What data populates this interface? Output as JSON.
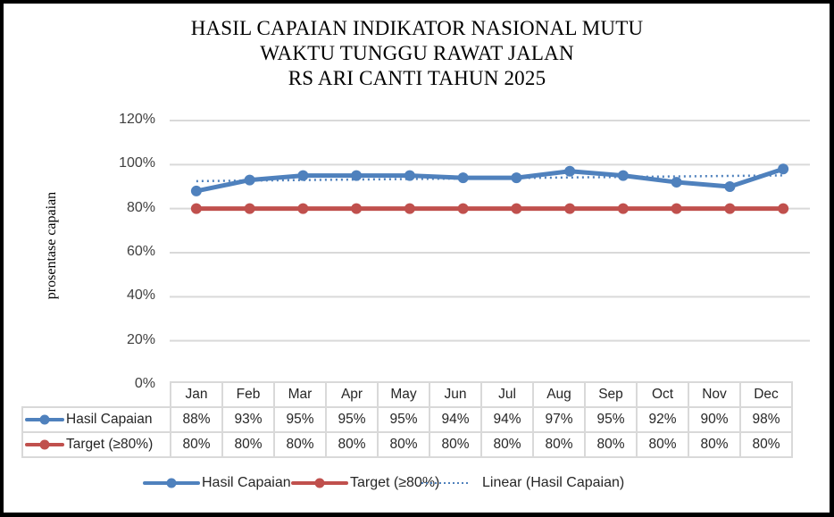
{
  "chart_data": {
    "type": "line",
    "title": "HASIL CAPAIAN INDIKATOR NASIONAL MUTU WAKTU TUNGGU RAWAT JALAN RS ARI CANTI TAHUN 2025",
    "title_lines": [
      "HASIL CAPAIAN INDIKATOR NASIONAL MUTU",
      "WAKTU TUNGGU  RAWAT JALAN",
      "RS ARI CANTI TAHUN  2025"
    ],
    "xlabel": "",
    "ylabel": "prosentase capaian",
    "ylim": [
      0,
      120
    ],
    "yticks": [
      "0%",
      "20%",
      "40%",
      "60%",
      "80%",
      "100%",
      "120%"
    ],
    "grid": true,
    "legend_position": "bottom",
    "data_table": true,
    "categories": [
      "Jan",
      "Feb",
      "Mar",
      "Apr",
      "May",
      "Jun",
      "Jul",
      "Aug",
      "Sep",
      "Oct",
      "Nov",
      "Dec"
    ],
    "series": [
      {
        "name": "Hasil Capaian",
        "color": "#4F81BD",
        "values": [
          88,
          93,
          95,
          95,
          95,
          94,
          94,
          97,
          95,
          92,
          90,
          98
        ],
        "labels": [
          "88%",
          "93%",
          "95%",
          "95%",
          "95%",
          "94%",
          "94%",
          "97%",
          "95%",
          "92%",
          "90%",
          "98%"
        ]
      },
      {
        "name": "Target (≥80%)",
        "color": "#C0504D",
        "values": [
          80,
          80,
          80,
          80,
          80,
          80,
          80,
          80,
          80,
          80,
          80,
          80
        ],
        "labels": [
          "80%",
          "80%",
          "80%",
          "80%",
          "80%",
          "80%",
          "80%",
          "80%",
          "80%",
          "80%",
          "80%",
          "80%"
        ]
      }
    ],
    "trendline": {
      "name": "Linear (Hasil Capaian)",
      "type": "linear",
      "of_series": "Hasil Capaian",
      "color": "#4F81BD",
      "style": "dotted",
      "start_value": 92.5,
      "end_value": 95.1
    },
    "legend": [
      "Hasil Capaian",
      "Target (≥80%)",
      "Linear (Hasil Capaian)"
    ]
  },
  "colors": {
    "blue": "#4F81BD",
    "red": "#C0504D",
    "grid": "#D9D9D9",
    "frame": "#000000"
  }
}
